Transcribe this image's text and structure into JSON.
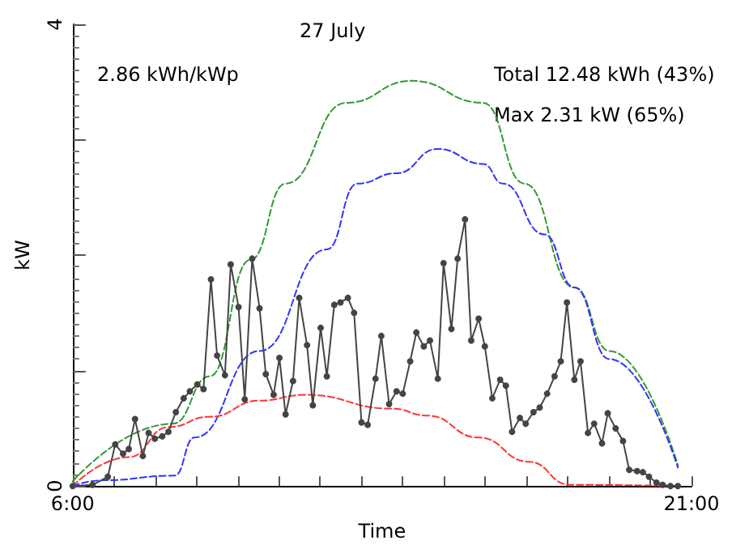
{
  "chart_data": {
    "type": "line",
    "title": "27 July",
    "xlabel": "Time",
    "ylabel": "kW",
    "annotations": [
      "2.86 kWh/kWp",
      "Total 12.48 kWh (43%)",
      "Max 2.31 kW (65%)"
    ],
    "xlim": [
      6,
      21
    ],
    "xticks": [
      {
        "value": 6,
        "label": "6:00"
      },
      {
        "value": 7,
        "label": null
      },
      {
        "value": 8,
        "label": null
      },
      {
        "value": 9,
        "label": null
      },
      {
        "value": 10,
        "label": null
      },
      {
        "value": 11,
        "label": null
      },
      {
        "value": 12,
        "label": null
      },
      {
        "value": 13,
        "label": null
      },
      {
        "value": 14,
        "label": null
      },
      {
        "value": 15,
        "label": null
      },
      {
        "value": 16,
        "label": null
      },
      {
        "value": 17,
        "label": null
      },
      {
        "value": 18,
        "label": null
      },
      {
        "value": 19,
        "label": null
      },
      {
        "value": 20,
        "label": null
      },
      {
        "value": 21,
        "label": "21:00"
      }
    ],
    "ylim": [
      0,
      4
    ],
    "yticks": [
      0,
      {
        "value": 1,
        "label": null
      },
      {
        "value": 2,
        "label": null
      },
      {
        "value": 3,
        "label": null
      },
      4
    ],
    "grid": false,
    "series": [
      {
        "color": "#339933",
        "line_style": "dashed",
        "marker": "none",
        "x": [
          6.0,
          8.43,
          9.32,
          10.31,
          11.16,
          12.63,
          14.22,
          15.95,
          16.95,
          18.16,
          19.01,
          20.67
        ],
        "values": [
          0.04,
          0.54,
          0.95,
          1.96,
          2.62,
          3.32,
          3.51,
          3.32,
          2.62,
          1.72,
          1.17,
          0.18
        ]
      },
      {
        "color": "#3333ff",
        "line_style": "dashed",
        "marker": "none",
        "x": [
          6.0,
          6.75,
          8.47,
          8.95,
          10.53,
          12.16,
          12.9,
          13.85,
          14.85,
          15.95,
          16.43,
          17.43,
          18.16,
          19.01,
          20.67
        ],
        "values": [
          0.0,
          0.05,
          0.09,
          0.42,
          1.17,
          2.05,
          2.62,
          2.71,
          2.92,
          2.79,
          2.62,
          2.18,
          1.72,
          1.1,
          0.16
        ]
      },
      {
        "color": "#ff3333",
        "line_style": "dashed",
        "marker": "none",
        "x": [
          6.0,
          7.36,
          8.32,
          9.32,
          10.53,
          11.64,
          13.74,
          14.6,
          15.84,
          17.06,
          18.05,
          20.67
        ],
        "values": [
          0.0,
          0.25,
          0.51,
          0.6,
          0.74,
          0.79,
          0.67,
          0.61,
          0.42,
          0.21,
          0.01,
          0.0
        ]
      },
      {
        "color": "#444444",
        "line_style": "solid",
        "marker": "circle",
        "x": [
          6.0,
          6.48,
          6.85,
          7.03,
          7.22,
          7.36,
          7.51,
          7.7,
          7.84,
          7.99,
          8.17,
          8.32,
          8.5,
          8.69,
          8.84,
          9.02,
          9.17,
          9.35,
          9.5,
          9.69,
          9.83,
          10.02,
          10.17,
          10.35,
          10.53,
          10.68,
          10.87,
          11.01,
          11.16,
          11.34,
          11.49,
          11.68,
          11.82,
          12.01,
          12.16,
          12.34,
          12.49,
          12.67,
          12.82,
          13.0,
          13.15,
          13.34,
          13.48,
          13.67,
          13.85,
          14.0,
          14.18,
          14.33,
          14.51,
          14.66,
          14.85,
          14.99,
          15.18,
          15.33,
          15.51,
          15.66,
          15.84,
          15.99,
          16.17,
          16.36,
          16.5,
          16.65,
          16.84,
          16.98,
          17.17,
          17.32,
          17.5,
          17.68,
          17.83,
          17.98,
          18.16,
          18.31,
          18.49,
          18.64,
          18.83,
          18.97,
          19.16,
          19.34,
          19.49,
          19.68,
          19.82,
          19.97,
          20.15,
          20.3,
          20.49,
          20.67
        ],
        "values": [
          0.0,
          0.01,
          0.08,
          0.36,
          0.28,
          0.32,
          0.58,
          0.26,
          0.46,
          0.41,
          0.43,
          0.47,
          0.64,
          0.76,
          0.82,
          0.88,
          0.84,
          1.79,
          1.13,
          0.96,
          1.92,
          1.55,
          0.75,
          1.97,
          1.54,
          0.97,
          0.79,
          1.11,
          0.62,
          0.91,
          1.63,
          1.22,
          0.7,
          1.37,
          0.95,
          1.57,
          1.59,
          1.63,
          1.5,
          0.55,
          0.53,
          0.93,
          1.3,
          0.71,
          0.82,
          0.8,
          1.08,
          1.33,
          1.21,
          1.26,
          0.93,
          1.93,
          1.36,
          1.97,
          2.31,
          1.26,
          1.45,
          1.21,
          0.76,
          0.92,
          0.87,
          0.47,
          0.59,
          0.54,
          0.64,
          0.68,
          0.8,
          0.95,
          1.08,
          1.59,
          0.92,
          1.08,
          0.46,
          0.54,
          0.37,
          0.63,
          0.5,
          0.39,
          0.14,
          0.13,
          0.12,
          0.08,
          0.03,
          0.01,
          0.0,
          0.0
        ]
      }
    ]
  }
}
